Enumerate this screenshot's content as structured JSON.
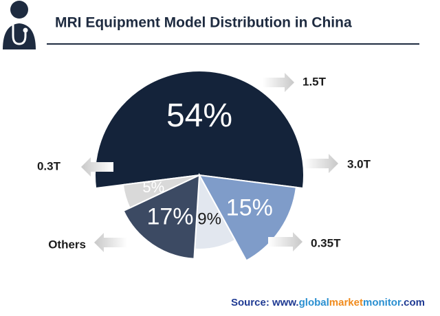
{
  "chart_data": {
    "type": "pie",
    "title": "MRI Equipment Model Distribution in China",
    "categories": [
      "1.5T",
      "3.0T",
      "0.35T",
      "Others",
      "0.3T"
    ],
    "values": [
      54,
      15,
      9,
      17,
      5
    ],
    "value_labels": [
      "54%",
      "15%",
      "9%",
      "17%",
      "5%"
    ],
    "colors": [
      "#14233a",
      "#7f9cc9",
      "#e2e7ef",
      "#3c4a63",
      "#d9d9d9"
    ],
    "source_parts": [
      "Source: www.",
      "global",
      "market",
      "monitor",
      ".com"
    ]
  }
}
